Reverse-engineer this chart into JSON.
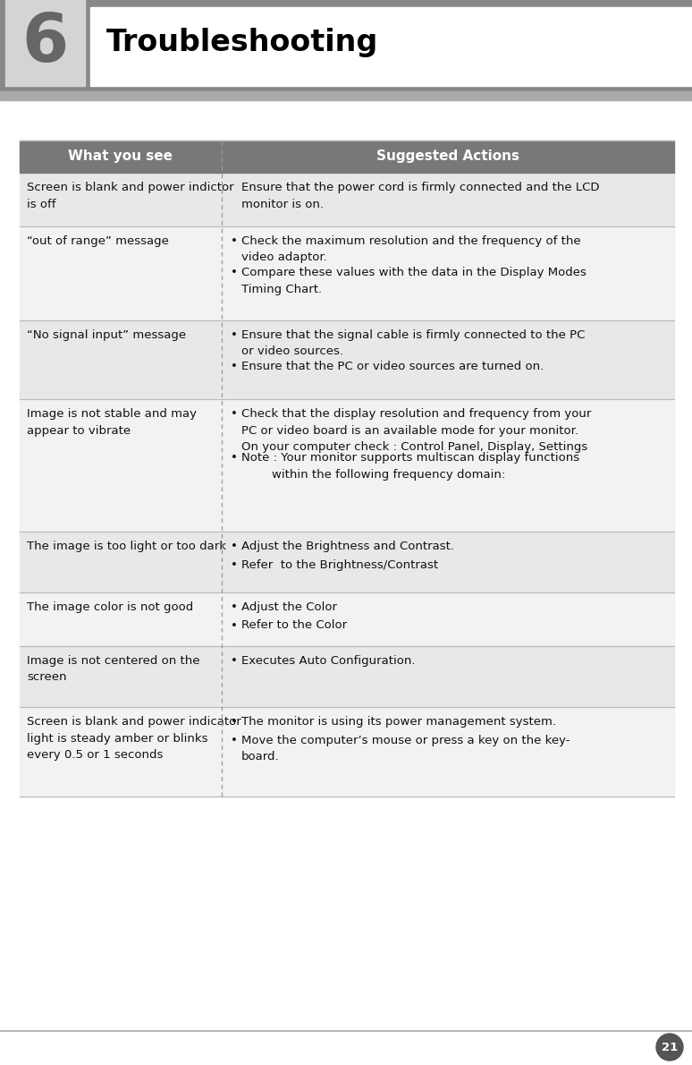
{
  "title": "Troubleshooting",
  "chapter_num": "6",
  "header_outer_bg": "#888888",
  "header_box_bg": "#d0d0d0",
  "header_title_bg": "#ffffff",
  "col1_header": "What you see",
  "col2_header": "Suggested Actions",
  "table_header_bg": "#787878",
  "table_header_text": "#ffffff",
  "divider_color": "#bbbbbb",
  "col_divider": "#999999",
  "row_bg_light": "#e8e8e8",
  "row_bg_white": "#ffffff",
  "text_color": "#111111",
  "rows": [
    {
      "left": "Screen is blank and power indictor\nis off",
      "right_bullets": false,
      "right": "Ensure that the power cord is firmly connected and the LCD\nmonitor is on.",
      "bg": "#e8e8e8"
    },
    {
      "left": "“out of range” message",
      "right_bullets": true,
      "right_items": [
        "Check the maximum resolution and the frequency of the\nvideo adaptor.",
        "Compare these values with the data in the Display Modes\nTiming Chart."
      ],
      "bg": "#f2f2f2"
    },
    {
      "left": "“No signal input” message",
      "right_bullets": true,
      "right_items": [
        "Ensure that the signal cable is firmly connected to the PC\nor video sources.",
        "Ensure that the PC or video sources are turned on."
      ],
      "bg": "#e8e8e8"
    },
    {
      "left": "Image is not stable and may\nappear to vibrate",
      "right_bullets": true,
      "right_items": [
        "Check that the display resolution and frequency from your\nPC or video board is an available mode for your monitor.\nOn your computer check : Control Panel, Display, Settings",
        "Note : Your monitor supports multiscan display functions\n        within the following frequency domain:"
      ],
      "bg": "#f2f2f2"
    },
    {
      "left": "The image is too light or too dark",
      "right_bullets": true,
      "right_items": [
        "Adjust the Brightness and Contrast.",
        "Refer  to the Brightness/Contrast"
      ],
      "bg": "#e8e8e8"
    },
    {
      "left": "The image color is not good",
      "right_bullets": true,
      "right_items": [
        "Adjust the Color",
        "Refer to the Color"
      ],
      "bg": "#f2f2f2"
    },
    {
      "left": "Image is not centered on the\nscreen",
      "right_bullets": true,
      "right_items": [
        "Executes Auto Configuration."
      ],
      "bg": "#e8e8e8"
    },
    {
      "left": "Screen is blank and power indicator\nlight is steady amber or blinks\nevery 0.5 or 1 seconds",
      "right_bullets": true,
      "right_items": [
        "The monitor is using its power management system.",
        "Move the computer’s mouse or press a key on the key-\nboard."
      ],
      "bg": "#f2f2f2"
    }
  ],
  "page_num": "21"
}
